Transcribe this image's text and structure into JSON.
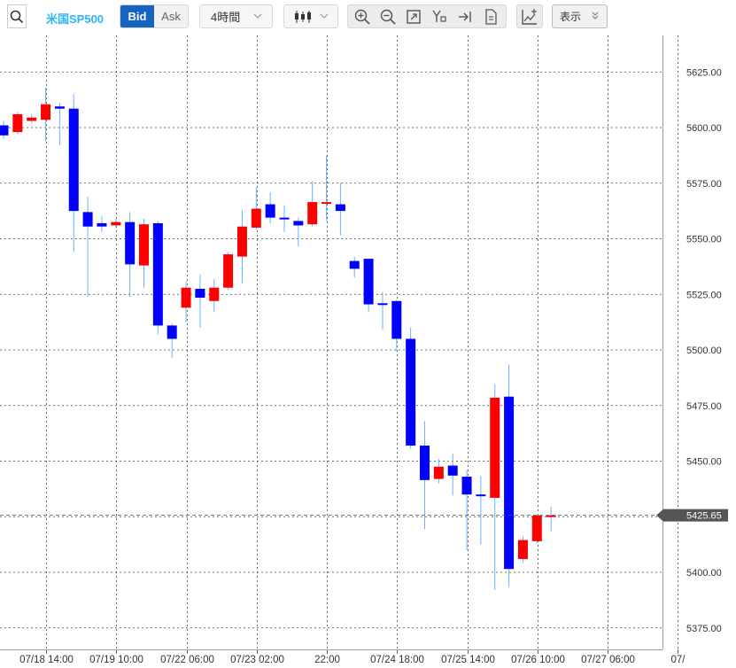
{
  "toolbar": {
    "symbol": "米国SP500",
    "bid_label": "Bid",
    "ask_label": "Ask",
    "interval": "4時間",
    "view_label": "表示"
  },
  "colors": {
    "up": "#ff0000",
    "down": "#0000ff",
    "wick": "#66b3ff",
    "price_badge": "#555555"
  },
  "chart_data": {
    "type": "candlestick",
    "title": "",
    "xlabel": "",
    "ylabel": "",
    "ylim": [
      5366.5,
      5637.5
    ],
    "yticks": [
      5375,
      5400,
      5425,
      5450,
      5475,
      5500,
      5525,
      5550,
      5575,
      5600,
      5625
    ],
    "ytick_labels": [
      "5375.00",
      "5400.00",
      "5425.00",
      "5450.00",
      "5475.00",
      "5500.00",
      "5525.00",
      "5550.00",
      "5575.00",
      "5600.00",
      "5625.00"
    ],
    "xtick_labels": [
      "07/18 14:00",
      "07/19 10:00",
      "07/22 06:00",
      "07/23 02:00",
      "22:00",
      "07/24 18:00",
      "07/25 14:00",
      "07/26 10:00",
      "07/27 06:00",
      "07/"
    ],
    "xtick_candle_index": [
      3,
      8,
      13,
      18,
      23,
      28,
      33,
      38,
      43,
      48
    ],
    "grid": true,
    "last_price": 5425.65,
    "last_price_label": "5425.65",
    "candles": [
      {
        "o": 5601.0,
        "h": 5603.0,
        "l": 5595.0,
        "c": 5596.5
      },
      {
        "o": 5598.0,
        "h": 5607.0,
        "l": 5597.0,
        "c": 5606.0
      },
      {
        "o": 5603.0,
        "h": 5606.0,
        "l": 5602.0,
        "c": 5604.5
      },
      {
        "o": 5603.5,
        "h": 5618.0,
        "l": 5594.0,
        "c": 5610.5
      },
      {
        "o": 5609.5,
        "h": 5611.0,
        "l": 5592.0,
        "c": 5608.5
      },
      {
        "o": 5608.5,
        "h": 5615.0,
        "l": 5544.0,
        "c": 5562.5
      },
      {
        "o": 5562.0,
        "h": 5569.0,
        "l": 5524.0,
        "c": 5555.5
      },
      {
        "o": 5557.0,
        "h": 5560.0,
        "l": 5553.0,
        "c": 5555.5
      },
      {
        "o": 5556.0,
        "h": 5559.0,
        "l": 5555.0,
        "c": 5557.5
      },
      {
        "o": 5557.5,
        "h": 5562.0,
        "l": 5524.0,
        "c": 5538.5
      },
      {
        "o": 5538.0,
        "h": 5559.0,
        "l": 5528.0,
        "c": 5556.5
      },
      {
        "o": 5557.0,
        "h": 5558.0,
        "l": 5507.0,
        "c": 5511.0
      },
      {
        "o": 5511.0,
        "h": 5512.0,
        "l": 5496.5,
        "c": 5505.0
      },
      {
        "o": 5519.0,
        "h": 5531.0,
        "l": 5512.5,
        "c": 5528.0
      },
      {
        "o": 5527.5,
        "h": 5534.0,
        "l": 5510.0,
        "c": 5523.5
      },
      {
        "o": 5522.0,
        "h": 5532.0,
        "l": 5517.0,
        "c": 5528.0
      },
      {
        "o": 5528.0,
        "h": 5544.0,
        "l": 5527.0,
        "c": 5543.0
      },
      {
        "o": 5542.0,
        "h": 5563.0,
        "l": 5530.0,
        "c": 5555.5
      },
      {
        "o": 5555.0,
        "h": 5573.0,
        "l": 5554.0,
        "c": 5563.5
      },
      {
        "o": 5565.5,
        "h": 5571.0,
        "l": 5557.0,
        "c": 5559.5
      },
      {
        "o": 5559.5,
        "h": 5565.0,
        "l": 5553.0,
        "c": 5559.0
      },
      {
        "o": 5558.0,
        "h": 5559.5,
        "l": 5546.5,
        "c": 5556.0
      },
      {
        "o": 5556.5,
        "h": 5576.0,
        "l": 5555.5,
        "c": 5566.5
      },
      {
        "o": 5566.0,
        "h": 5587.5,
        "l": 5558.0,
        "c": 5566.5
      },
      {
        "o": 5565.5,
        "h": 5575.0,
        "l": 5551.5,
        "c": 5562.5
      },
      {
        "o": 5540.0,
        "h": 5542.0,
        "l": 5532.5,
        "c": 5536.5
      },
      {
        "o": 5541.0,
        "h": 5541.0,
        "l": 5517.0,
        "c": 5520.5
      },
      {
        "o": 5521.0,
        "h": 5526.0,
        "l": 5509.0,
        "c": 5520.5
      },
      {
        "o": 5522.0,
        "h": 5522.5,
        "l": 5499.5,
        "c": 5505.0
      },
      {
        "o": 5505.0,
        "h": 5510.0,
        "l": 5455.5,
        "c": 5457.0
      },
      {
        "o": 5457.0,
        "h": 5468.0,
        "l": 5419.5,
        "c": 5441.5
      },
      {
        "o": 5442.0,
        "h": 5451.0,
        "l": 5440.0,
        "c": 5447.5
      },
      {
        "o": 5448.0,
        "h": 5453.5,
        "l": 5434.5,
        "c": 5443.5
      },
      {
        "o": 5443.0,
        "h": 5446.0,
        "l": 5410.0,
        "c": 5435.0
      },
      {
        "o": 5435.0,
        "h": 5443.5,
        "l": 5412.5,
        "c": 5434.5
      },
      {
        "o": 5433.5,
        "h": 5484.5,
        "l": 5392.0,
        "c": 5478.5
      },
      {
        "o": 5479.0,
        "h": 5493.5,
        "l": 5393.5,
        "c": 5401.5
      },
      {
        "o": 5406.0,
        "h": 5416.0,
        "l": 5404.5,
        "c": 5414.5
      },
      {
        "o": 5414.0,
        "h": 5426.0,
        "l": 5413.0,
        "c": 5425.5
      },
      {
        "o": 5425.0,
        "h": 5429.5,
        "l": 5418.5,
        "c": 5425.65
      }
    ]
  }
}
